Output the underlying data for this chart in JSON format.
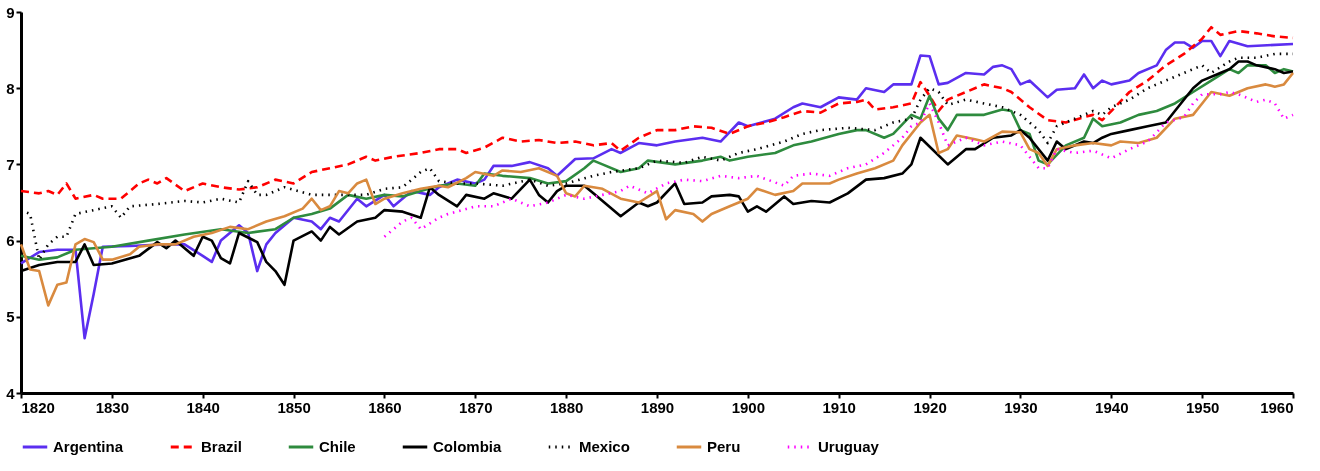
{
  "chart_data": {
    "type": "line",
    "xlim": [
      1820,
      1960
    ],
    "xticks": [
      1820,
      1830,
      1840,
      1850,
      1860,
      1870,
      1880,
      1890,
      1900,
      1910,
      1920,
      1930,
      1940,
      1950,
      1960
    ],
    "ylim": [
      4,
      9
    ],
    "yticks": [
      4,
      5,
      6,
      7,
      8,
      9
    ],
    "grid": false,
    "legend": "bottom",
    "marker": "none",
    "series": [
      {
        "name": "Argentina",
        "color": "#5b2ef0",
        "line_style": "solid",
        "x": [
          1820,
          1822,
          1824,
          1826,
          1827,
          1828,
          1829,
          1832,
          1836,
          1838,
          1840,
          1841,
          1842,
          1844,
          1845,
          1846,
          1847,
          1848,
          1850,
          1852,
          1853,
          1854,
          1855,
          1857,
          1858,
          1860,
          1861,
          1863,
          1865,
          1866,
          1868,
          1870,
          1871,
          1872,
          1874,
          1876,
          1878,
          1879,
          1881,
          1883,
          1885,
          1886,
          1888,
          1890,
          1892,
          1895,
          1897,
          1899,
          1900,
          1903,
          1905,
          1906,
          1908,
          1910,
          1912,
          1913,
          1915,
          1916,
          1918,
          1919,
          1920,
          1921,
          1922,
          1924,
          1926,
          1927,
          1928,
          1929,
          1930,
          1931,
          1933,
          1934,
          1936,
          1937,
          1938,
          1939,
          1940,
          1942,
          1943,
          1945,
          1946,
          1947,
          1948,
          1949,
          1950,
          1951,
          1952,
          1953,
          1955,
          1960
        ],
        "values": [
          5.7,
          5.85,
          5.88,
          5.88,
          4.72,
          5.3,
          5.92,
          5.93,
          5.95,
          5.95,
          5.8,
          5.72,
          6.0,
          6.2,
          6.1,
          5.6,
          5.95,
          6.1,
          6.3,
          6.25,
          6.15,
          6.3,
          6.25,
          6.55,
          6.45,
          6.6,
          6.45,
          6.65,
          6.6,
          6.7,
          6.8,
          6.75,
          6.8,
          6.98,
          6.98,
          7.03,
          6.95,
          6.85,
          7.07,
          7.08,
          7.2,
          7.15,
          7.28,
          7.25,
          7.3,
          7.35,
          7.3,
          7.55,
          7.5,
          7.6,
          7.75,
          7.8,
          7.75,
          7.88,
          7.85,
          8.0,
          7.95,
          8.05,
          8.05,
          8.43,
          8.42,
          8.05,
          8.07,
          8.2,
          8.18,
          8.28,
          8.3,
          8.25,
          8.05,
          8.1,
          7.88,
          7.98,
          8.0,
          8.18,
          8.0,
          8.1,
          8.05,
          8.1,
          8.2,
          8.3,
          8.5,
          8.6,
          8.6,
          8.53,
          8.62,
          8.62,
          8.42,
          8.62,
          8.55,
          8.58
        ]
      },
      {
        "name": "Brazil",
        "color": "#ff0000",
        "line_style": "dashed",
        "x": [
          1820,
          1822,
          1823,
          1824,
          1825,
          1826,
          1828,
          1829,
          1831,
          1833,
          1834,
          1835,
          1836,
          1838,
          1840,
          1842,
          1844,
          1846,
          1848,
          1850,
          1852,
          1854,
          1856,
          1858,
          1859,
          1861,
          1864,
          1866,
          1868,
          1869,
          1871,
          1873,
          1875,
          1877,
          1879,
          1881,
          1883,
          1885,
          1886,
          1888,
          1890,
          1892,
          1894,
          1896,
          1898,
          1900,
          1902,
          1904,
          1906,
          1908,
          1910,
          1912,
          1913,
          1914,
          1916,
          1918,
          1919,
          1920,
          1921,
          1922,
          1924,
          1926,
          1928,
          1929,
          1931,
          1933,
          1935,
          1937,
          1938,
          1939,
          1940,
          1942,
          1944,
          1946,
          1948,
          1950,
          1951,
          1952,
          1954,
          1956,
          1958,
          1960
        ],
        "values": [
          6.65,
          6.62,
          6.65,
          6.6,
          6.75,
          6.55,
          6.6,
          6.55,
          6.55,
          6.75,
          6.8,
          6.75,
          6.82,
          6.65,
          6.75,
          6.7,
          6.67,
          6.7,
          6.8,
          6.75,
          6.9,
          6.95,
          7.0,
          7.1,
          7.05,
          7.1,
          7.15,
          7.2,
          7.2,
          7.15,
          7.22,
          7.35,
          7.3,
          7.32,
          7.28,
          7.3,
          7.25,
          7.28,
          7.18,
          7.35,
          7.45,
          7.45,
          7.5,
          7.48,
          7.4,
          7.5,
          7.55,
          7.62,
          7.7,
          7.68,
          7.8,
          7.82,
          7.85,
          7.72,
          7.75,
          7.8,
          8.08,
          7.9,
          7.7,
          7.85,
          7.95,
          8.05,
          8.0,
          7.95,
          7.75,
          7.58,
          7.55,
          7.62,
          7.65,
          7.58,
          7.7,
          7.95,
          8.1,
          8.3,
          8.45,
          8.65,
          8.8,
          8.7,
          8.75,
          8.72,
          8.68,
          8.66
        ]
      },
      {
        "name": "Chile",
        "color": "#2e8b3e",
        "line_style": "solid",
        "x": [
          1820,
          1822,
          1824,
          1826,
          1830,
          1834,
          1838,
          1842,
          1845,
          1848,
          1850,
          1852,
          1854,
          1856,
          1858,
          1860,
          1862,
          1864,
          1866,
          1868,
          1870,
          1871,
          1873,
          1876,
          1878,
          1880,
          1882,
          1883,
          1884,
          1886,
          1888,
          1889,
          1892,
          1895,
          1897,
          1898,
          1900,
          1903,
          1905,
          1907,
          1910,
          1912,
          1913,
          1915,
          1916,
          1918,
          1919,
          1920,
          1921,
          1922,
          1923,
          1926,
          1928,
          1929,
          1930,
          1931,
          1932,
          1933,
          1935,
          1937,
          1938,
          1939,
          1941,
          1943,
          1945,
          1947,
          1949,
          1951,
          1953,
          1954,
          1955,
          1957,
          1958,
          1959,
          1960
        ],
        "values": [
          5.8,
          5.75,
          5.78,
          5.88,
          5.92,
          6.0,
          6.08,
          6.15,
          6.1,
          6.15,
          6.3,
          6.35,
          6.42,
          6.6,
          6.55,
          6.6,
          6.58,
          6.65,
          6.72,
          6.75,
          6.72,
          6.88,
          6.85,
          6.82,
          6.75,
          6.78,
          6.95,
          7.05,
          7.0,
          6.9,
          6.95,
          7.05,
          7.0,
          7.05,
          7.1,
          7.05,
          7.1,
          7.15,
          7.25,
          7.3,
          7.4,
          7.45,
          7.45,
          7.35,
          7.4,
          7.65,
          7.6,
          7.9,
          7.6,
          7.45,
          7.65,
          7.65,
          7.72,
          7.7,
          7.45,
          7.4,
          7.05,
          7.0,
          7.25,
          7.35,
          7.6,
          7.5,
          7.55,
          7.65,
          7.7,
          7.8,
          7.95,
          8.1,
          8.25,
          8.2,
          8.3,
          8.3,
          8.2,
          8.25,
          8.22
        ]
      },
      {
        "name": "Colombia",
        "color": "#000000",
        "line_style": "solid",
        "x": [
          1820,
          1822,
          1824,
          1826,
          1827,
          1828,
          1830,
          1833,
          1835,
          1836,
          1837,
          1839,
          1840,
          1841,
          1842,
          1843,
          1844,
          1846,
          1847,
          1848,
          1849,
          1850,
          1852,
          1853,
          1854,
          1855,
          1857,
          1859,
          1860,
          1862,
          1864,
          1865,
          1866,
          1868,
          1869,
          1871,
          1872,
          1874,
          1876,
          1877,
          1878,
          1879,
          1880,
          1882,
          1883,
          1886,
          1888,
          1889,
          1890,
          1892,
          1893,
          1895,
          1896,
          1898,
          1899,
          1900,
          1901,
          1902,
          1904,
          1905,
          1907,
          1909,
          1911,
          1913,
          1915,
          1917,
          1918,
          1919,
          1922,
          1924,
          1925,
          1927,
          1929,
          1930,
          1931,
          1933,
          1934,
          1935,
          1937,
          1938,
          1939,
          1940,
          1942,
          1944,
          1946,
          1947,
          1949,
          1950,
          1952,
          1953,
          1954,
          1955,
          1956,
          1958,
          1959,
          1960
        ],
        "values": [
          5.6,
          5.68,
          5.72,
          5.72,
          5.95,
          5.68,
          5.7,
          5.8,
          5.98,
          5.9,
          6.0,
          5.8,
          6.05,
          6.0,
          5.77,
          5.7,
          6.1,
          5.98,
          5.72,
          5.6,
          5.42,
          6.0,
          6.12,
          6.0,
          6.18,
          6.08,
          6.25,
          6.3,
          6.4,
          6.38,
          6.3,
          6.7,
          6.6,
          6.45,
          6.6,
          6.55,
          6.62,
          6.55,
          6.8,
          6.6,
          6.5,
          6.65,
          6.72,
          6.72,
          6.62,
          6.32,
          6.5,
          6.45,
          6.5,
          6.75,
          6.48,
          6.5,
          6.58,
          6.6,
          6.58,
          6.38,
          6.45,
          6.38,
          6.58,
          6.48,
          6.52,
          6.5,
          6.62,
          6.8,
          6.82,
          6.88,
          7.0,
          7.35,
          7.0,
          7.2,
          7.2,
          7.35,
          7.38,
          7.45,
          7.35,
          7.05,
          7.3,
          7.2,
          7.3,
          7.28,
          7.35,
          7.4,
          7.45,
          7.5,
          7.55,
          7.7,
          8.0,
          8.1,
          8.2,
          8.25,
          8.35,
          8.35,
          8.3,
          8.25,
          8.2,
          8.22
        ]
      },
      {
        "name": "Mexico",
        "color": "#000000",
        "line_style": "dotted",
        "x": [
          1820,
          1821,
          1822,
          1823,
          1824,
          1825,
          1826,
          1828,
          1830,
          1831,
          1832,
          1835,
          1838,
          1840,
          1842,
          1844,
          1845,
          1846,
          1847,
          1849,
          1852,
          1855,
          1858,
          1860,
          1862,
          1864,
          1865,
          1866,
          1868,
          1870,
          1873,
          1876,
          1878,
          1880,
          1883,
          1885,
          1888,
          1890,
          1893,
          1895,
          1897,
          1899,
          1901,
          1904,
          1906,
          1908,
          1911,
          1914,
          1916,
          1918,
          1919,
          1920,
          1921,
          1922,
          1924,
          1926,
          1928,
          1930,
          1932,
          1933,
          1934,
          1936,
          1938,
          1939,
          1940,
          1942,
          1944,
          1946,
          1948,
          1950,
          1951,
          1953,
          1954,
          1956,
          1958,
          1960
        ],
        "values": [
          6.4,
          6.35,
          5.75,
          5.95,
          6.05,
          6.05,
          6.35,
          6.4,
          6.45,
          6.3,
          6.45,
          6.48,
          6.52,
          6.5,
          6.55,
          6.5,
          6.78,
          6.6,
          6.6,
          6.7,
          6.6,
          6.6,
          6.6,
          6.68,
          6.7,
          6.9,
          6.95,
          6.78,
          6.75,
          6.75,
          6.72,
          6.8,
          6.72,
          6.75,
          6.85,
          6.9,
          6.95,
          7.05,
          7.02,
          7.1,
          7.05,
          7.15,
          7.2,
          7.3,
          7.4,
          7.45,
          7.48,
          7.45,
          7.55,
          7.6,
          7.85,
          8.0,
          7.95,
          7.78,
          7.85,
          7.8,
          7.75,
          7.65,
          7.45,
          7.28,
          7.5,
          7.6,
          7.7,
          7.65,
          7.75,
          7.85,
          8.0,
          8.1,
          8.2,
          8.3,
          8.2,
          8.35,
          8.4,
          8.4,
          8.45,
          8.45
        ]
      },
      {
        "name": "Peru",
        "color": "#d98a3f",
        "line_style": "solid",
        "x": [
          1820,
          1821,
          1822,
          1823,
          1824,
          1825,
          1826,
          1827,
          1828,
          1829,
          1830,
          1832,
          1833,
          1835,
          1837,
          1839,
          1841,
          1843,
          1845,
          1847,
          1849,
          1851,
          1852,
          1853,
          1854,
          1855,
          1856,
          1857,
          1858,
          1859,
          1860,
          1862,
          1864,
          1866,
          1867,
          1869,
          1870,
          1872,
          1873,
          1875,
          1877,
          1879,
          1880,
          1881,
          1882,
          1884,
          1886,
          1888,
          1890,
          1891,
          1892,
          1894,
          1895,
          1896,
          1898,
          1899,
          1900,
          1901,
          1903,
          1905,
          1906,
          1909,
          1910,
          1912,
          1914,
          1916,
          1917,
          1919,
          1920,
          1921,
          1922,
          1923,
          1925,
          1926,
          1928,
          1930,
          1931,
          1932,
          1933,
          1934,
          1936,
          1938,
          1940,
          1941,
          1943,
          1945,
          1947,
          1949,
          1950,
          1951,
          1953,
          1955,
          1957,
          1958,
          1959,
          1960
        ],
        "values": [
          5.95,
          5.62,
          5.6,
          5.15,
          5.42,
          5.45,
          5.95,
          6.02,
          5.98,
          5.75,
          5.75,
          5.82,
          5.92,
          5.95,
          5.95,
          6.05,
          6.1,
          6.18,
          6.15,
          6.25,
          6.32,
          6.42,
          6.55,
          6.4,
          6.45,
          6.65,
          6.62,
          6.75,
          6.8,
          6.48,
          6.55,
          6.62,
          6.68,
          6.72,
          6.7,
          6.82,
          6.9,
          6.85,
          6.92,
          6.9,
          6.95,
          6.85,
          6.62,
          6.58,
          6.72,
          6.68,
          6.55,
          6.5,
          6.65,
          6.28,
          6.4,
          6.35,
          6.25,
          6.35,
          6.45,
          6.5,
          6.55,
          6.68,
          6.6,
          6.65,
          6.75,
          6.75,
          6.8,
          6.88,
          6.95,
          7.05,
          7.25,
          7.55,
          7.65,
          7.15,
          7.2,
          7.38,
          7.33,
          7.3,
          7.43,
          7.42,
          7.2,
          7.15,
          6.98,
          7.2,
          7.25,
          7.28,
          7.25,
          7.3,
          7.28,
          7.35,
          7.6,
          7.65,
          7.8,
          7.95,
          7.9,
          8.0,
          8.05,
          8.02,
          8.05,
          8.2
        ]
      },
      {
        "name": "Uruguay",
        "color": "#ff00ff",
        "line_style": "dotted",
        "x": [
          1860,
          1862,
          1863,
          1864,
          1866,
          1867,
          1868,
          1870,
          1872,
          1874,
          1876,
          1878,
          1880,
          1882,
          1884,
          1886,
          1887,
          1889,
          1891,
          1893,
          1895,
          1897,
          1899,
          1901,
          1904,
          1905,
          1907,
          1909,
          1911,
          1913,
          1915,
          1917,
          1918,
          1919,
          1920,
          1921,
          1922,
          1924,
          1926,
          1928,
          1930,
          1931,
          1932,
          1933,
          1934,
          1936,
          1938,
          1940,
          1942,
          1944,
          1945,
          1946,
          1948,
          1949,
          1950,
          1952,
          1953,
          1954,
          1956,
          1957,
          1958,
          1959,
          1960
        ],
        "values": [
          6.05,
          6.25,
          6.3,
          6.15,
          6.3,
          6.35,
          6.38,
          6.45,
          6.45,
          6.55,
          6.45,
          6.5,
          6.6,
          6.55,
          6.6,
          6.65,
          6.72,
          6.62,
          6.75,
          6.8,
          6.78,
          6.85,
          6.82,
          6.85,
          6.72,
          6.85,
          6.88,
          6.85,
          6.95,
          7.0,
          7.15,
          7.35,
          7.5,
          7.55,
          7.8,
          7.55,
          7.25,
          7.35,
          7.25,
          7.3,
          7.25,
          7.1,
          6.95,
          6.95,
          7.2,
          7.15,
          7.18,
          7.08,
          7.2,
          7.3,
          7.42,
          7.55,
          7.62,
          7.8,
          7.92,
          7.92,
          7.95,
          7.92,
          7.82,
          7.85,
          7.8,
          7.6,
          7.65
        ]
      }
    ]
  }
}
